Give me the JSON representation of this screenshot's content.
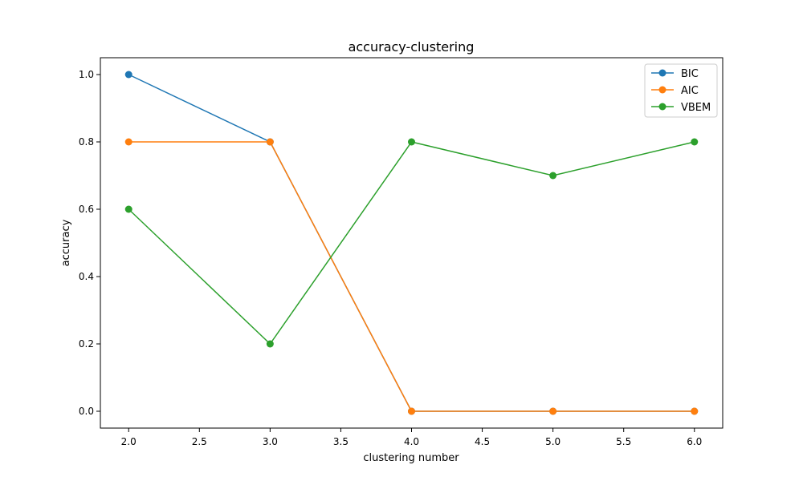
{
  "chart_data": {
    "type": "line",
    "title": "accuracy-clustering",
    "xlabel": "clustering number",
    "ylabel": "accuracy",
    "x": [
      2,
      3,
      4,
      5,
      6
    ],
    "xlim": [
      1.8,
      6.2
    ],
    "ylim": [
      -0.05,
      1.05
    ],
    "xticks": [
      "2.0",
      "2.5",
      "3.0",
      "3.5",
      "4.0",
      "4.5",
      "5.0",
      "5.5",
      "6.0"
    ],
    "yticks": [
      "0.0",
      "0.2",
      "0.4",
      "0.6",
      "0.8",
      "1.0"
    ],
    "grid": false,
    "legend_position": "top-right",
    "series": [
      {
        "name": "BIC",
        "color": "#1f77b4",
        "values": [
          1.0,
          0.8,
          0.0,
          0.0,
          0.0
        ]
      },
      {
        "name": "AIC",
        "color": "#ff7f0e",
        "values": [
          0.8,
          0.8,
          0.0,
          0.0,
          0.0
        ]
      },
      {
        "name": "VBEM",
        "color": "#2ca02c",
        "values": [
          0.6,
          0.2,
          0.8,
          0.7,
          0.8
        ]
      }
    ]
  }
}
